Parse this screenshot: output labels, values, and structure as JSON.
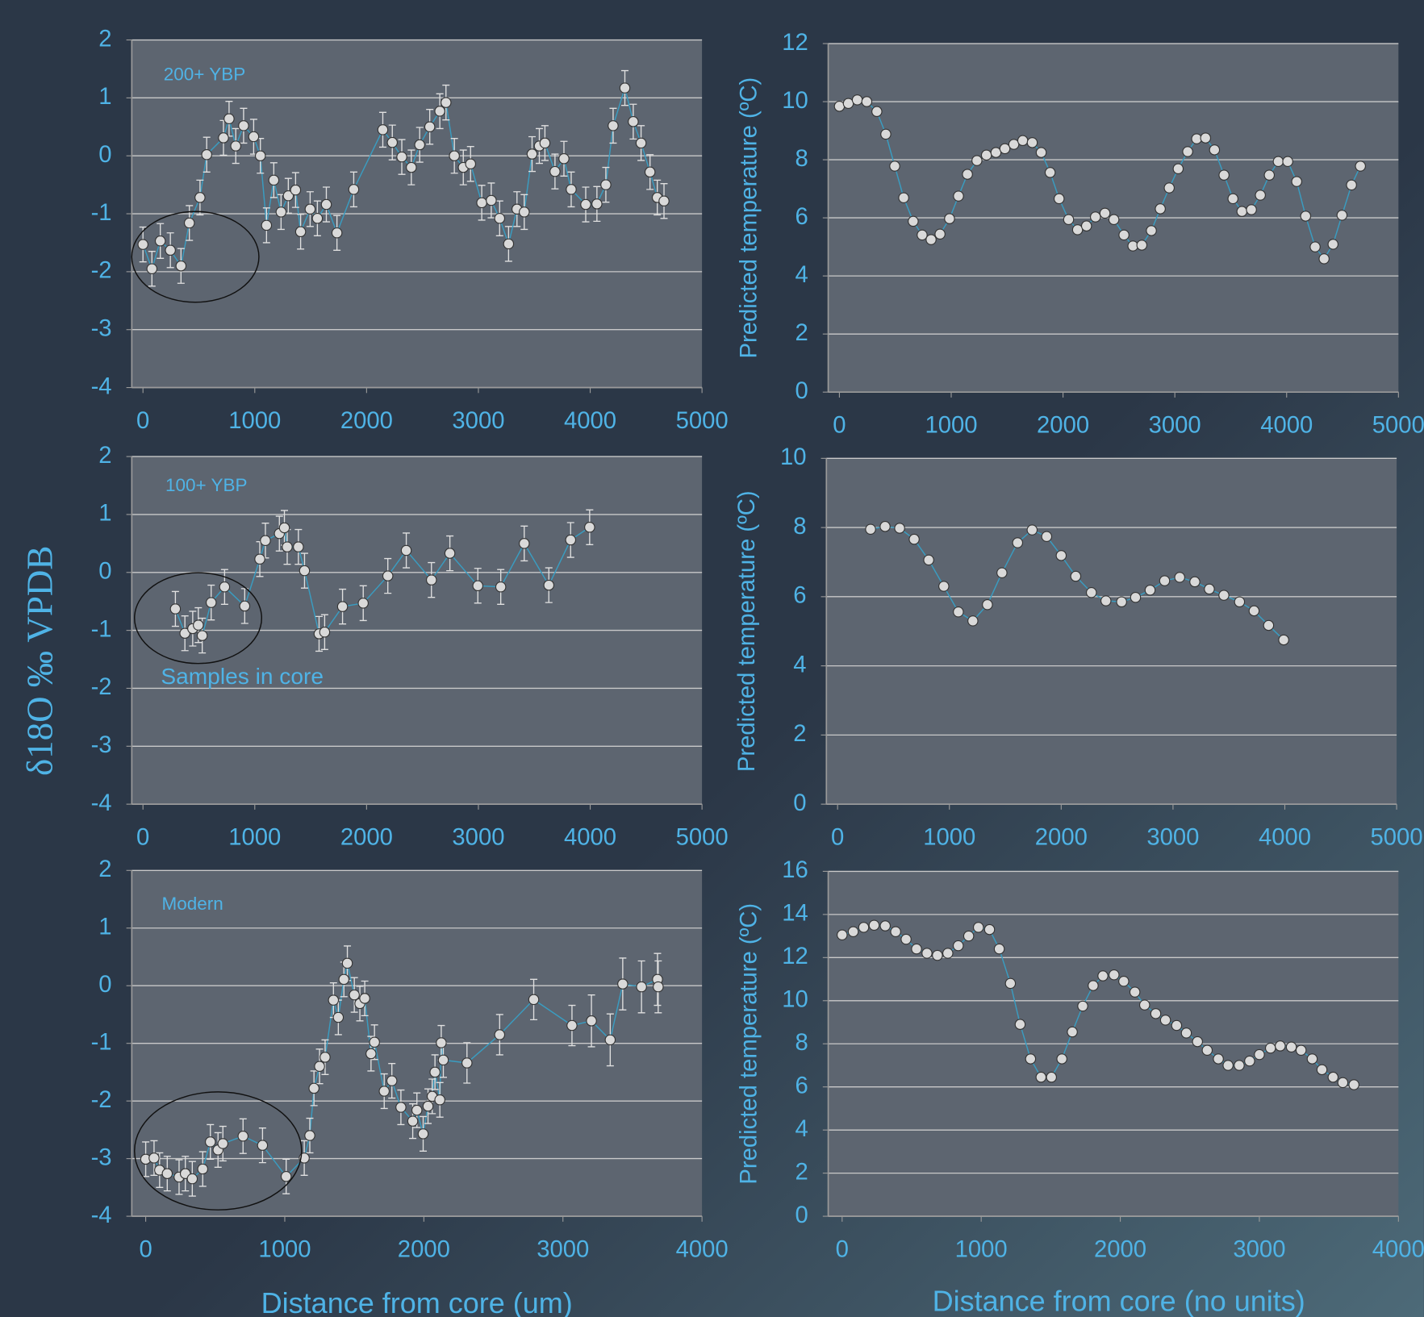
{
  "figure": {
    "ylabel": "δ18O ‰ VPDB",
    "xlabel_left": "Distance from core (um)",
    "xlabel_right": "Distance from core (no units)"
  },
  "chart_data": [
    {
      "type": "line",
      "color": "#3a9cc0",
      "marker_color": "#d9d9d9",
      "grid": true,
      "annotations": [
        "200+ YBP"
      ],
      "x": [
        0,
        80,
        155,
        245,
        340,
        415,
        510,
        570,
        720,
        770,
        830,
        900,
        990,
        1050,
        1105,
        1170,
        1235,
        1300,
        1365,
        1410,
        1495,
        1560,
        1640,
        1735,
        1885,
        2145,
        2230,
        2315,
        2400,
        2475,
        2565,
        2655,
        2710,
        2785,
        2865,
        2930,
        3030,
        3115,
        3190,
        3270,
        3345,
        3410,
        3480,
        3545,
        3595,
        3685,
        3765,
        3830,
        3960,
        4060,
        4140,
        4205,
        4310,
        4385,
        4455,
        4535,
        4600,
        4660
      ],
      "values": [
        -1.53,
        -1.95,
        -1.47,
        -1.63,
        -1.9,
        -1.16,
        -0.72,
        0.02,
        0.31,
        0.64,
        0.17,
        0.52,
        0.33,
        0,
        -1.2,
        -0.42,
        -0.97,
        -0.69,
        -0.59,
        -1.31,
        -0.92,
        -1.08,
        -0.84,
        -1.33,
        -0.58,
        0.45,
        0.23,
        -0.02,
        -0.2,
        0.19,
        0.5,
        0.77,
        0.92,
        0,
        -0.2,
        -0.14,
        -0.81,
        -0.77,
        -1.08,
        -1.52,
        -0.92,
        -0.97,
        0.03,
        0.17,
        0.22,
        -0.27,
        -0.05,
        -0.58,
        -0.84,
        -0.83,
        -0.5,
        0.52,
        1.17,
        0.59,
        0.22,
        -0.28,
        -0.72,
        -0.78
      ],
      "errors": [
        0.3,
        0.3,
        0.3,
        0.3,
        0.3,
        0.3,
        0.3,
        0.3,
        0.3,
        0.3,
        0.3,
        0.3,
        0.3,
        0.3,
        0.3,
        0.3,
        0.3,
        0.3,
        0.3,
        0.3,
        0.3,
        0.3,
        0.3,
        0.3,
        0.3,
        0.3,
        0.3,
        0.3,
        0.3,
        0.3,
        0.3,
        0.3,
        0.3,
        0.3,
        0.3,
        0.3,
        0.3,
        0.3,
        0.3,
        0.3,
        0.3,
        0.3,
        0.3,
        0.3,
        0.3,
        0.3,
        0.3,
        0.3,
        0.3,
        0.3,
        0.3,
        0.3,
        0.3,
        0.3,
        0.3,
        0.3,
        0.3,
        0.3
      ],
      "xlim": [
        -100,
        5000
      ],
      "xticks": [
        0,
        1000,
        2000,
        3000,
        4000,
        5000
      ],
      "ylim": [
        -4,
        2
      ],
      "yticks": [
        -4,
        -3,
        -2,
        -1,
        0,
        1,
        2
      ]
    },
    {
      "type": "line",
      "color": "#3a9cc0",
      "marker_color": "#d9d9d9",
      "grid": true,
      "annotations": [
        "100+ YBP",
        "Samples in core"
      ],
      "x": [
        290,
        375,
        445,
        495,
        530,
        610,
        730,
        910,
        1045,
        1095,
        1220,
        1265,
        1290,
        1390,
        1445,
        1575,
        1625,
        1785,
        1970,
        2190,
        2355,
        2580,
        2745,
        2995,
        3200,
        3410,
        3630,
        3825,
        3995
      ],
      "values": [
        -0.63,
        -1.05,
        -0.97,
        -0.91,
        -1.09,
        -0.52,
        -0.25,
        -0.58,
        0.23,
        0.55,
        0.67,
        0.77,
        0.44,
        0.44,
        0.03,
        -1.06,
        -1.03,
        -0.59,
        -0.53,
        -0.06,
        0.38,
        -0.13,
        0.33,
        -0.23,
        -0.25,
        0.5,
        -0.22,
        0.56,
        0.78
      ],
      "errors": [
        0.3,
        0.3,
        0.3,
        0.3,
        0.3,
        0.3,
        0.3,
        0.3,
        0.3,
        0.3,
        0.3,
        0.3,
        0.3,
        0.3,
        0.3,
        0.3,
        0.3,
        0.3,
        0.3,
        0.3,
        0.3,
        0.3,
        0.3,
        0.3,
        0.3,
        0.3,
        0.3,
        0.3,
        0.3
      ],
      "xlim": [
        -100,
        5000
      ],
      "xticks": [
        0,
        1000,
        2000,
        3000,
        4000,
        5000
      ],
      "ylim": [
        -4,
        2
      ],
      "yticks": [
        -4,
        -3,
        -2,
        -1,
        0,
        1,
        2
      ]
    },
    {
      "type": "line",
      "color": "#3a9cc0",
      "marker_color": "#d9d9d9",
      "grid": true,
      "annotations": [
        "Modern"
      ],
      "x": [
        0,
        60,
        100,
        155,
        240,
        285,
        335,
        410,
        465,
        520,
        555,
        700,
        840,
        1010,
        1140,
        1180,
        1210,
        1250,
        1290,
        1350,
        1385,
        1425,
        1450,
        1500,
        1540,
        1575,
        1620,
        1645,
        1715,
        1770,
        1835,
        1920,
        1950,
        1995,
        2030,
        2060,
        2080,
        2115,
        2125,
        2140,
        2310,
        2545,
        2790,
        3065,
        3205,
        3340,
        3430,
        3565,
        3680,
        3685
      ],
      "values": [
        -3.01,
        -2.99,
        -3.2,
        -3.26,
        -3.32,
        -3.26,
        -3.35,
        -3.18,
        -2.71,
        -2.85,
        -2.74,
        -2.61,
        -2.77,
        -3.31,
        -2.99,
        -2.6,
        -1.78,
        -1.4,
        -1.24,
        -0.25,
        -0.55,
        0.11,
        0.39,
        -0.16,
        -0.31,
        -0.22,
        -1.18,
        -0.98,
        -1.83,
        -1.65,
        -2.11,
        -2.35,
        -2.16,
        -2.57,
        -2.09,
        -1.92,
        -1.5,
        -1.98,
        -0.99,
        -1.29,
        -1.34,
        -0.85,
        -0.24,
        -0.69,
        -0.61,
        -0.94,
        0.03,
        -0.02,
        0.11,
        -0.02
      ],
      "errors": [
        0.3,
        0.3,
        0.3,
        0.3,
        0.3,
        0.3,
        0.3,
        0.3,
        0.3,
        0.3,
        0.3,
        0.3,
        0.3,
        0.3,
        0.3,
        0.3,
        0.3,
        0.3,
        0.3,
        0.3,
        0.3,
        0.3,
        0.3,
        0.3,
        0.3,
        0.3,
        0.3,
        0.3,
        0.3,
        0.3,
        0.3,
        0.3,
        0.3,
        0.3,
        0.3,
        0.3,
        0.3,
        0.3,
        0.3,
        0.3,
        0.35,
        0.35,
        0.35,
        0.35,
        0.45,
        0.45,
        0.45,
        0.45,
        0.45,
        0.45
      ],
      "xlim": [
        -100,
        4000
      ],
      "xticks": [
        0,
        1000,
        2000,
        3000,
        4000
      ],
      "ylim": [
        -4,
        2
      ],
      "yticks": [
        -4,
        -3,
        -2,
        -1,
        0,
        1,
        2
      ]
    },
    {
      "type": "line",
      "color": "#3a9cc0",
      "marker_color": "#d9d9d9",
      "grid": true,
      "ylabel": "Predicted temperature (ºC)",
      "x": [
        0,
        80,
        160,
        245,
        335,
        415,
        495,
        575,
        660,
        740,
        820,
        900,
        985,
        1065,
        1145,
        1230,
        1315,
        1400,
        1480,
        1560,
        1640,
        1725,
        1805,
        1885,
        1965,
        2050,
        2130,
        2210,
        2290,
        2375,
        2455,
        2545,
        2625,
        2705,
        2790,
        2870,
        2950,
        3030,
        3115,
        3195,
        3275,
        3355,
        3440,
        3520,
        3600,
        3685,
        3765,
        3845,
        3925,
        4010,
        4090,
        4170,
        4255,
        4335,
        4415,
        4495,
        4580,
        4660
      ],
      "values": [
        9.84,
        9.94,
        10.06,
        10.0,
        9.66,
        8.88,
        7.78,
        6.69,
        5.88,
        5.41,
        5.25,
        5.44,
        5.97,
        6.75,
        7.5,
        7.97,
        8.16,
        8.25,
        8.38,
        8.53,
        8.66,
        8.59,
        8.25,
        7.56,
        6.66,
        5.94,
        5.59,
        5.72,
        6.03,
        6.16,
        5.94,
        5.41,
        5.03,
        5.06,
        5.56,
        6.31,
        7.03,
        7.69,
        8.28,
        8.72,
        8.75,
        8.34,
        7.47,
        6.66,
        6.22,
        6.28,
        6.78,
        7.47,
        7.94,
        7.94,
        7.25,
        6.06,
        5.0,
        4.59,
        5.09,
        6.09,
        7.13,
        7.78
      ],
      "xlim": [
        -100,
        5000
      ],
      "xticks": [
        0,
        1000,
        2000,
        3000,
        4000,
        5000
      ],
      "ylim": [
        0,
        12
      ],
      "yticks": [
        0,
        2,
        4,
        6,
        8,
        10,
        12
      ]
    },
    {
      "type": "line",
      "color": "#3a9cc0",
      "marker_color": "#d9d9d9",
      "grid": true,
      "ylabel": "Predicted temperature (ºC)",
      "x": [
        295,
        425,
        555,
        685,
        815,
        950,
        1080,
        1210,
        1340,
        1470,
        1610,
        1740,
        1870,
        2000,
        2130,
        2270,
        2400,
        2540,
        2665,
        2795,
        2925,
        3060,
        3195,
        3325,
        3455,
        3595,
        3725,
        3855,
        3990
      ],
      "values": [
        7.95,
        8.03,
        7.98,
        7.66,
        7.06,
        6.3,
        5.56,
        5.3,
        5.77,
        6.69,
        7.56,
        7.93,
        7.74,
        7.19,
        6.59,
        6.12,
        5.88,
        5.85,
        5.98,
        6.19,
        6.46,
        6.56,
        6.43,
        6.22,
        6.04,
        5.85,
        5.59,
        5.17,
        4.75
      ],
      "xlim": [
        -100,
        5000
      ],
      "xticks": [
        0,
        1000,
        2000,
        3000,
        4000,
        5000
      ],
      "ylim": [
        0,
        10
      ],
      "yticks": [
        0,
        2,
        4,
        6,
        8,
        10
      ]
    },
    {
      "type": "line",
      "color": "#3a9cc0",
      "marker_color": "#d9d9d9",
      "grid": true,
      "ylabel": "Predicted temperature (ºC)",
      "x": [
        0,
        80,
        155,
        230,
        310,
        385,
        460,
        535,
        610,
        685,
        760,
        835,
        910,
        980,
        1060,
        1130,
        1210,
        1280,
        1355,
        1430,
        1505,
        1580,
        1655,
        1730,
        1805,
        1875,
        1955,
        2025,
        2105,
        2175,
        2255,
        2325,
        2405,
        2475,
        2555,
        2625,
        2705,
        2775,
        2855,
        2930,
        3000,
        3080,
        3150,
        3230,
        3300,
        3380,
        3450,
        3530,
        3600,
        3680
      ],
      "values": [
        13.05,
        13.2,
        13.4,
        13.5,
        13.47,
        13.2,
        12.85,
        12.4,
        12.2,
        12.1,
        12.2,
        12.55,
        13.0,
        13.4,
        13.3,
        12.4,
        10.8,
        8.9,
        7.3,
        6.45,
        6.45,
        7.3,
        8.55,
        9.75,
        10.7,
        11.15,
        11.2,
        10.9,
        10.4,
        9.8,
        9.4,
        9.1,
        8.85,
        8.5,
        8.1,
        7.7,
        7.3,
        7.0,
        7.0,
        7.2,
        7.5,
        7.8,
        7.9,
        7.85,
        7.7,
        7.3,
        6.8,
        6.45,
        6.2,
        6.1
      ],
      "xlim": [
        -100,
        4000
      ],
      "xticks": [
        0,
        1000,
        2000,
        3000,
        4000
      ],
      "ylim": [
        0,
        16
      ],
      "yticks": [
        0,
        2,
        4,
        6,
        8,
        10,
        12,
        14,
        16
      ]
    }
  ]
}
